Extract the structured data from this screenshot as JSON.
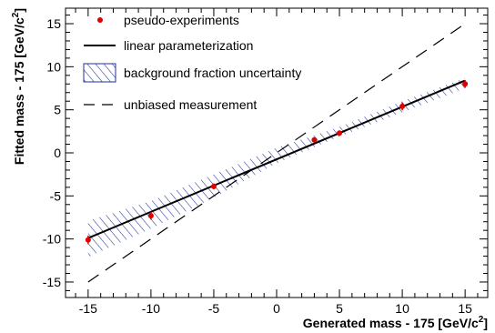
{
  "chart_data": {
    "type": "scatter",
    "xlabel": "Generated mass - 175 [GeV/c",
    "xlabel_sup": "2",
    "xlabel_end": "]",
    "ylabel": "Fitted mass - 175 [GeV/c",
    "ylabel_sup": "2",
    "ylabel_end": "]",
    "xlim": [
      -16.8,
      16.8
    ],
    "ylim": [
      -16.8,
      16.8
    ],
    "x_ticks": [
      "-15",
      "-10",
      "-5",
      "0",
      "5",
      "10",
      "15"
    ],
    "y_ticks": [
      "-15",
      "-10",
      "-5",
      "0",
      "5",
      "10",
      "15"
    ],
    "grid": false,
    "legend_position": "top-left",
    "colors": {
      "points": "#e00000",
      "fit": "#000000",
      "band": "#1f2f9f",
      "unbiased": "#000000"
    },
    "series": [
      {
        "name": "pseudo-experiments",
        "kind": "points",
        "x": [
          -15,
          -10,
          -5,
          3,
          5,
          10,
          15
        ],
        "y": [
          -10.1,
          -7.3,
          -3.9,
          1.5,
          2.3,
          5.4,
          8.0
        ],
        "yerr": [
          0.5,
          0.45,
          0.35,
          0.3,
          0.3,
          0.45,
          0.45
        ]
      },
      {
        "name": "linear parameterization",
        "kind": "line",
        "x": [
          -15,
          15
        ],
        "y": [
          -9.9,
          8.4
        ]
      },
      {
        "name": "background fraction uncertainty",
        "kind": "band",
        "x": [
          -15,
          -10,
          -5,
          0,
          5,
          10,
          15
        ],
        "lower": [
          -12.1,
          -8.8,
          -5.2,
          -1.2,
          1.9,
          4.7,
          7.5
        ],
        "upper": [
          -7.9,
          -5.6,
          -2.5,
          0.6,
          3.0,
          6.0,
          8.7
        ]
      },
      {
        "name": "unbiased measurement",
        "kind": "dashed-line",
        "x": [
          -15,
          15
        ],
        "y": [
          -15,
          15
        ]
      }
    ]
  }
}
